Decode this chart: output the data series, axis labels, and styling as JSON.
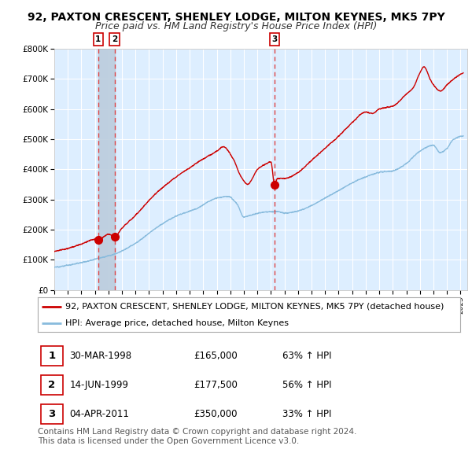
{
  "title": "92, PAXTON CRESCENT, SHENLEY LODGE, MILTON KEYNES, MK5 7PY",
  "subtitle": "Price paid vs. HM Land Registry's House Price Index (HPI)",
  "ylim": [
    0,
    800000
  ],
  "yticks": [
    0,
    100000,
    200000,
    300000,
    400000,
    500000,
    600000,
    700000,
    800000
  ],
  "ytick_labels": [
    "£0",
    "£100K",
    "£200K",
    "£300K",
    "£400K",
    "£500K",
    "£600K",
    "£700K",
    "£800K"
  ],
  "fig_bg_color": "#ffffff",
  "plot_bg_color": "#ddeeff",
  "grid_color": "#ffffff",
  "hpi_line_color": "#88bbdd",
  "price_line_color": "#cc0000",
  "marker_color": "#cc0000",
  "dashed_line_color": "#dd4444",
  "shade_color": "#bbccdd",
  "transaction_years": [
    1998.247,
    1999.452,
    2011.257
  ],
  "transaction_prices": [
    165000,
    177500,
    350000
  ],
  "transaction_labels": [
    "1",
    "2",
    "3"
  ],
  "legend_price_label": "92, PAXTON CRESCENT, SHENLEY LODGE, MILTON KEYNES, MK5 7PY (detached house)",
  "legend_hpi_label": "HPI: Average price, detached house, Milton Keynes",
  "table_rows": [
    [
      "1",
      "30-MAR-1998",
      "£165,000",
      "63% ↑ HPI"
    ],
    [
      "2",
      "14-JUN-1999",
      "£177,500",
      "56% ↑ HPI"
    ],
    [
      "3",
      "04-APR-2011",
      "£350,000",
      "33% ↑ HPI"
    ]
  ],
  "footer_text": "Contains HM Land Registry data © Crown copyright and database right 2024.\nThis data is licensed under the Open Government Licence v3.0.",
  "title_fontsize": 10,
  "subtitle_fontsize": 9,
  "tick_fontsize": 7.5,
  "legend_fontsize": 8,
  "table_fontsize": 8.5,
  "footer_fontsize": 7.5
}
